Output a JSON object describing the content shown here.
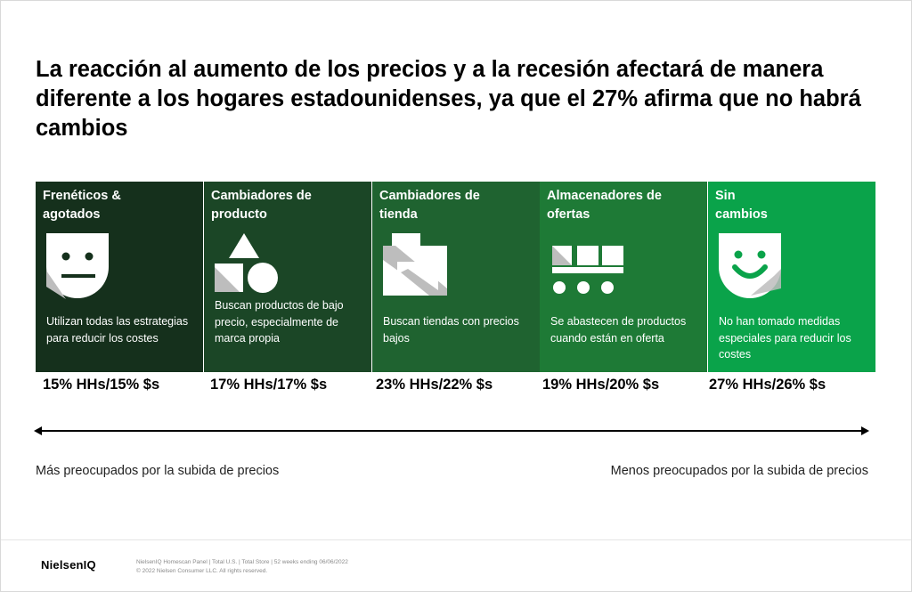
{
  "title": "La reacción al aumento de los precios y a la recesión afectará de manera diferente a los hogares estadounidenses, ya que el 27% afirma que no habrá cambios",
  "colors": {
    "card1": "#15301c",
    "card2": "#1b4626",
    "card3": "#1f6330",
    "card4": "#1e7a36",
    "card5": "#0aa34a"
  },
  "segments": [
    {
      "title": "Frenéticos & agotados",
      "icon": "neutral-face-icon",
      "description": "Utilizan todas las estrategias para reducir los costes",
      "stat": "15% HHs/15% $s"
    },
    {
      "title": "Cambiadores de producto",
      "icon": "shapes-icon",
      "description": "Buscan productos de bajo precio, especialmente de marca propia",
      "stat": "17% HHs/17% $s"
    },
    {
      "title": "Cambiadores de tienda",
      "icon": "store-icon",
      "description": "Buscan tiendas con precios bajos",
      "stat": "23% HHs/22% $s"
    },
    {
      "title": "Almacenadores de ofertas",
      "icon": "cart-icon",
      "description": "Se abastecen de productos cuando están en oferta",
      "stat": "19% HHs/20% $s"
    },
    {
      "title": "Sin cambios",
      "icon": "smile-face-icon",
      "description": "No han tomado medidas especiales para reducir los costes",
      "stat": "27% HHs/26% $s"
    }
  ],
  "axis": {
    "left_label": "Más preocupados por la subida de precios",
    "right_label": "Menos preocupados por la subida de precios"
  },
  "footer": {
    "brand": "NielsenIQ",
    "source": "NielsenIQ Homescan Panel | Total U.S. | Total Store | 52 weeks ending 06/06/2022",
    "copyright": "© 2022 Nielsen Consumer LLC. All rights reserved."
  }
}
